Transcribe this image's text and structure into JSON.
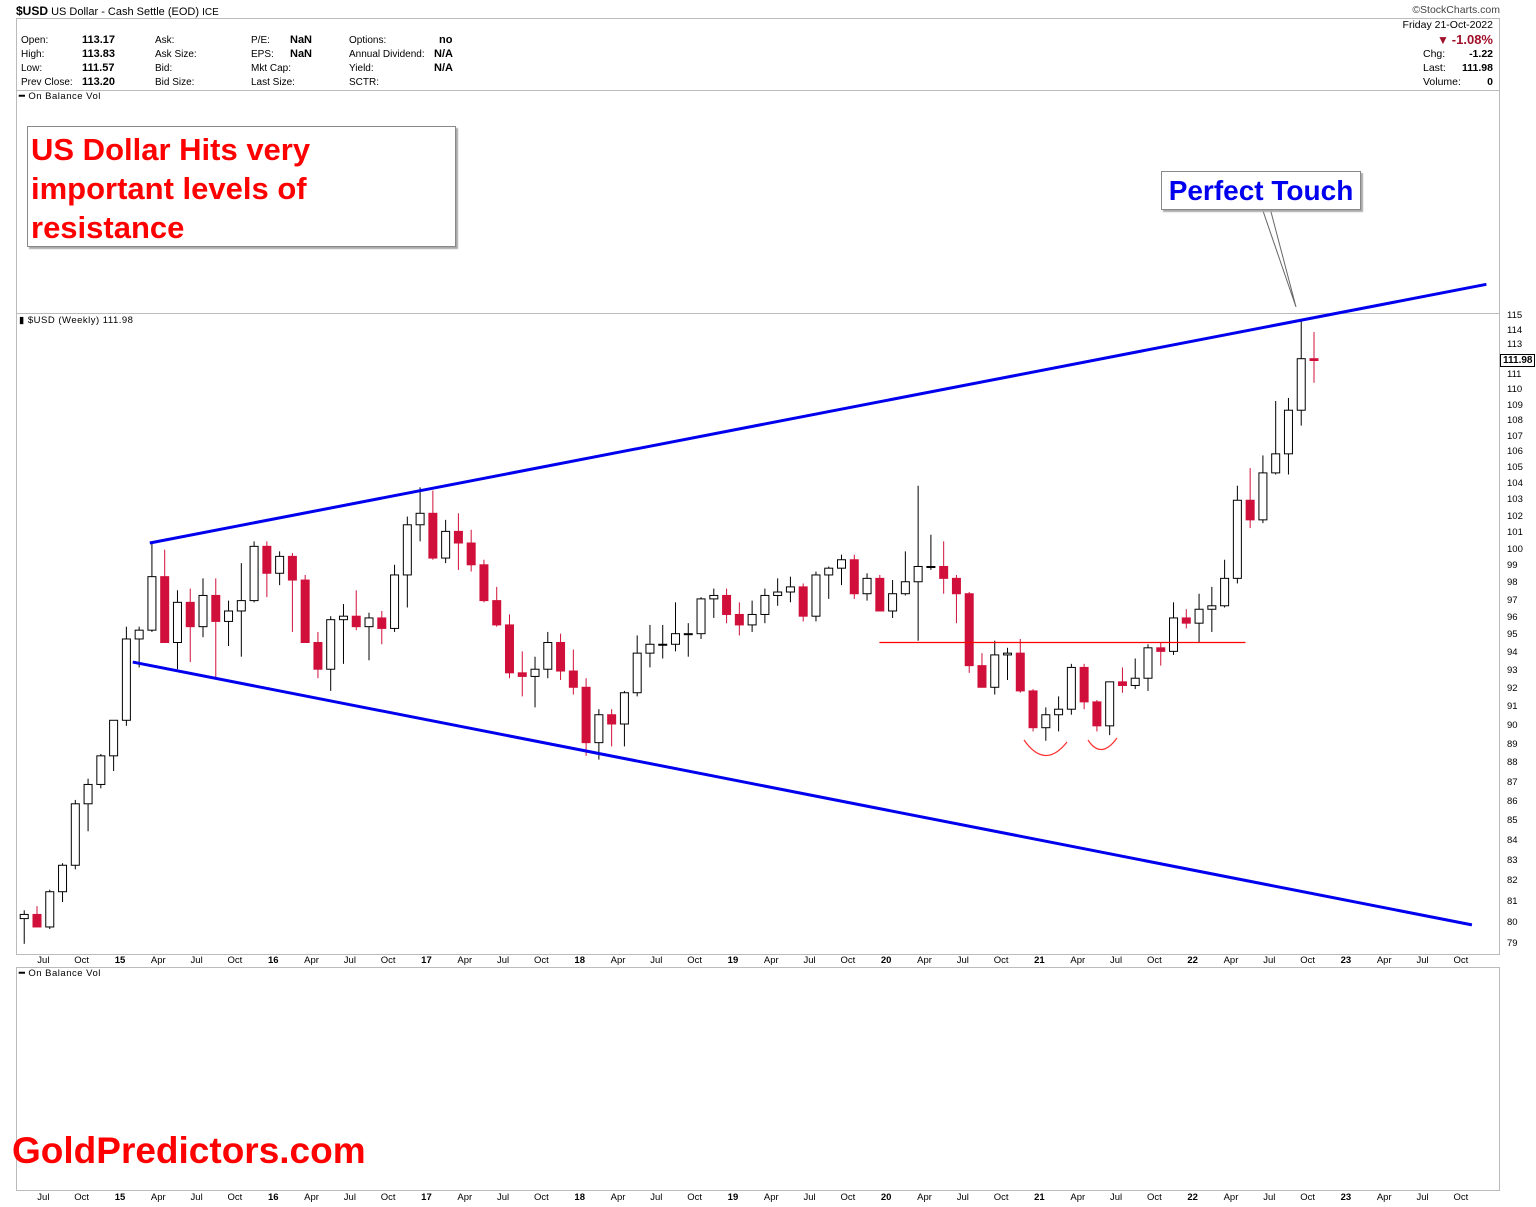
{
  "header": {
    "symbol": "$USD",
    "name": "US Dollar - Cash Settle (EOD)",
    "exchange": "ICE",
    "watermark": "©StockCharts.com",
    "date": "Friday  21-Oct-2022",
    "change_pct": "-1.08%",
    "quote": [
      {
        "label": "Open:",
        "value": "113.17"
      },
      {
        "label": "High:",
        "value": "113.83"
      },
      {
        "label": "Low:",
        "value": "111.57"
      },
      {
        "label": "Prev Close:",
        "value": "113.20"
      }
    ],
    "col2": [
      "Ask:",
      "Ask Size:",
      "Bid:",
      "Bid Size:"
    ],
    "col3": [
      {
        "label": "P/E:",
        "value": "NaN"
      },
      {
        "label": "EPS:",
        "value": "NaN"
      },
      {
        "label": "Mkt Cap:",
        "value": ""
      },
      {
        "label": "Last Size:",
        "value": ""
      }
    ],
    "col4": [
      {
        "label": "Options:",
        "value": "no"
      },
      {
        "label": "Annual Dividend:",
        "value": "N/A"
      },
      {
        "label": "Yield:",
        "value": "N/A"
      },
      {
        "label": "SCTR:",
        "value": ""
      }
    ],
    "right": [
      {
        "label": "Chg:",
        "value": "-1.22"
      },
      {
        "label": "Last:",
        "value": "111.98"
      },
      {
        "label": "Volume:",
        "value": "0"
      }
    ]
  },
  "colors": {
    "up": "#000000",
    "down": "#d0103a",
    "trendline": "#0000ee",
    "level": "#ff0000"
  },
  "annotations": {
    "headline": [
      "US Dollar Hits very",
      "important levels of",
      "resistance"
    ],
    "callout": "Perfect Touch",
    "brand": "GoldPredictors.com"
  },
  "panels": {
    "top_indicator": "On Balance Vol",
    "price_legend": "$USD (Weekly) 111.98",
    "bottom_indicator": "On Balance Vol",
    "last_price_tag": "111.98"
  },
  "chart_data": {
    "type": "candlestick",
    "title": "$USD (Weekly) 111.98",
    "y_scale": "log",
    "ylim": [
      79,
      115
    ],
    "y_ticks": [
      79,
      80,
      81,
      82,
      83,
      84,
      85,
      86,
      87,
      88,
      89,
      90,
      91,
      92,
      93,
      94,
      95,
      96,
      97,
      98,
      99,
      100,
      101,
      102,
      103,
      104,
      105,
      106,
      107,
      108,
      109,
      110,
      111,
      113,
      114,
      115
    ],
    "x_ticks": [
      {
        "date": "2014-07",
        "label": "Jul"
      },
      {
        "date": "2014-10",
        "label": "Oct"
      },
      {
        "date": "2015-01",
        "label": "15",
        "year": true
      },
      {
        "date": "2015-04",
        "label": "Apr"
      },
      {
        "date": "2015-07",
        "label": "Jul"
      },
      {
        "date": "2015-10",
        "label": "Oct"
      },
      {
        "date": "2016-01",
        "label": "16",
        "year": true
      },
      {
        "date": "2016-04",
        "label": "Apr"
      },
      {
        "date": "2016-07",
        "label": "Jul"
      },
      {
        "date": "2016-10",
        "label": "Oct"
      },
      {
        "date": "2017-01",
        "label": "17",
        "year": true
      },
      {
        "date": "2017-04",
        "label": "Apr"
      },
      {
        "date": "2017-07",
        "label": "Jul"
      },
      {
        "date": "2017-10",
        "label": "Oct"
      },
      {
        "date": "2018-01",
        "label": "18",
        "year": true
      },
      {
        "date": "2018-04",
        "label": "Apr"
      },
      {
        "date": "2018-07",
        "label": "Jul"
      },
      {
        "date": "2018-10",
        "label": "Oct"
      },
      {
        "date": "2019-01",
        "label": "19",
        "year": true
      },
      {
        "date": "2019-04",
        "label": "Apr"
      },
      {
        "date": "2019-07",
        "label": "Jul"
      },
      {
        "date": "2019-10",
        "label": "Oct"
      },
      {
        "date": "2020-01",
        "label": "20",
        "year": true
      },
      {
        "date": "2020-04",
        "label": "Apr"
      },
      {
        "date": "2020-07",
        "label": "Jul"
      },
      {
        "date": "2020-10",
        "label": "Oct"
      },
      {
        "date": "2021-01",
        "label": "21",
        "year": true
      },
      {
        "date": "2021-04",
        "label": "Apr"
      },
      {
        "date": "2021-07",
        "label": "Jul"
      },
      {
        "date": "2021-10",
        "label": "Oct"
      },
      {
        "date": "2022-01",
        "label": "22",
        "year": true
      },
      {
        "date": "2022-04",
        "label": "Apr"
      },
      {
        "date": "2022-07",
        "label": "Jul"
      },
      {
        "date": "2022-10",
        "label": "Oct"
      },
      {
        "date": "2023-01",
        "label": "23",
        "year": true
      },
      {
        "date": "2023-04",
        "label": "Apr"
      },
      {
        "date": "2023-07",
        "label": "Jul"
      },
      {
        "date": "2023-10",
        "label": "Oct"
      }
    ],
    "columns": [
      "date",
      "open",
      "high",
      "low",
      "close"
    ],
    "ohlc": [
      [
        "2014-05",
        80.2,
        80.6,
        79.0,
        80.4
      ],
      [
        "2014-06",
        80.4,
        80.8,
        79.8,
        79.8
      ],
      [
        "2014-07",
        79.8,
        81.6,
        79.7,
        81.5
      ],
      [
        "2014-08",
        81.5,
        82.9,
        81.0,
        82.8
      ],
      [
        "2014-09",
        82.8,
        86.1,
        82.6,
        85.9
      ],
      [
        "2014-10",
        85.9,
        87.2,
        84.5,
        86.9
      ],
      [
        "2014-11",
        86.9,
        88.5,
        86.7,
        88.4
      ],
      [
        "2014-12",
        88.4,
        90.3,
        87.6,
        90.3
      ],
      [
        "2015-01",
        90.3,
        95.5,
        90.0,
        94.8
      ],
      [
        "2015-02",
        94.8,
        95.5,
        93.2,
        95.3
      ],
      [
        "2015-03",
        95.3,
        100.4,
        95.2,
        98.4
      ],
      [
        "2015-04",
        98.4,
        100.0,
        94.6,
        94.6
      ],
      [
        "2015-05",
        94.6,
        97.6,
        93.1,
        96.9
      ],
      [
        "2015-06",
        96.9,
        97.7,
        93.5,
        95.5
      ],
      [
        "2015-07",
        95.5,
        98.3,
        94.9,
        97.3
      ],
      [
        "2015-08",
        97.3,
        98.3,
        92.6,
        95.8
      ],
      [
        "2015-09",
        95.8,
        97.0,
        94.4,
        96.4
      ],
      [
        "2015-10",
        96.4,
        99.2,
        93.8,
        97.0
      ],
      [
        "2015-11",
        97.0,
        100.5,
        96.9,
        100.2
      ],
      [
        "2015-12",
        100.2,
        100.5,
        97.2,
        98.6
      ],
      [
        "2016-01",
        98.6,
        99.9,
        97.9,
        99.6
      ],
      [
        "2016-02",
        99.6,
        99.8,
        95.2,
        98.2
      ],
      [
        "2016-03",
        98.2,
        98.5,
        94.6,
        94.6
      ],
      [
        "2016-04",
        94.6,
        95.2,
        92.6,
        93.1
      ],
      [
        "2016-05",
        93.1,
        96.1,
        91.9,
        95.9
      ],
      [
        "2016-06",
        95.9,
        96.8,
        93.4,
        96.1
      ],
      [
        "2016-07",
        96.1,
        97.6,
        95.3,
        95.5
      ],
      [
        "2016-08",
        95.5,
        96.3,
        93.6,
        96.0
      ],
      [
        "2016-09",
        96.0,
        96.4,
        94.5,
        95.4
      ],
      [
        "2016-10",
        95.4,
        99.1,
        95.2,
        98.5
      ],
      [
        "2016-11",
        98.5,
        102.0,
        96.6,
        101.5
      ],
      [
        "2016-12",
        101.5,
        103.8,
        100.5,
        102.2
      ],
      [
        "2017-01",
        102.2,
        103.6,
        99.4,
        99.5
      ],
      [
        "2017-02",
        99.5,
        101.8,
        99.2,
        101.1
      ],
      [
        "2017-03",
        101.1,
        102.2,
        98.8,
        100.4
      ],
      [
        "2017-04",
        100.4,
        101.2,
        98.7,
        99.1
      ],
      [
        "2017-05",
        99.1,
        99.4,
        96.9,
        97.0
      ],
      [
        "2017-06",
        97.0,
        97.8,
        95.5,
        95.6
      ],
      [
        "2017-07",
        95.6,
        96.2,
        92.6,
        92.9
      ],
      [
        "2017-08",
        92.9,
        94.1,
        91.6,
        92.7
      ],
      [
        "2017-09",
        92.7,
        93.8,
        91.0,
        93.1
      ],
      [
        "2017-10",
        93.1,
        95.2,
        92.6,
        94.6
      ],
      [
        "2017-11",
        94.6,
        95.1,
        92.5,
        93.0
      ],
      [
        "2017-12",
        93.0,
        94.2,
        91.7,
        92.1
      ],
      [
        "2018-01",
        92.1,
        92.6,
        88.4,
        89.1
      ],
      [
        "2018-02",
        89.1,
        90.9,
        88.2,
        90.6
      ],
      [
        "2018-03",
        90.6,
        90.9,
        88.9,
        90.1
      ],
      [
        "2018-04",
        90.1,
        91.9,
        88.9,
        91.8
      ],
      [
        "2018-05",
        91.8,
        95.0,
        91.6,
        94.0
      ],
      [
        "2018-06",
        94.0,
        95.6,
        93.2,
        94.5
      ],
      [
        "2018-07",
        94.5,
        95.6,
        93.7,
        94.5
      ],
      [
        "2018-08",
        94.5,
        96.9,
        94.1,
        95.1
      ],
      [
        "2018-09",
        95.1,
        95.7,
        93.8,
        95.1
      ],
      [
        "2018-10",
        95.1,
        97.2,
        94.8,
        97.1
      ],
      [
        "2018-11",
        97.1,
        97.7,
        96.0,
        97.3
      ],
      [
        "2018-12",
        97.3,
        97.7,
        95.7,
        96.2
      ],
      [
        "2019-01",
        96.2,
        96.9,
        95.0,
        95.6
      ],
      [
        "2019-02",
        95.6,
        97.0,
        95.2,
        96.2
      ],
      [
        "2019-03",
        96.2,
        97.7,
        95.7,
        97.3
      ],
      [
        "2019-04",
        97.3,
        98.3,
        96.7,
        97.5
      ],
      [
        "2019-05",
        97.5,
        98.4,
        96.9,
        97.8
      ],
      [
        "2019-06",
        97.8,
        98.0,
        95.8,
        96.1
      ],
      [
        "2019-07",
        96.1,
        98.7,
        95.8,
        98.5
      ],
      [
        "2019-08",
        98.5,
        99.0,
        97.1,
        98.9
      ],
      [
        "2019-09",
        98.9,
        99.7,
        97.9,
        99.4
      ],
      [
        "2019-10",
        99.4,
        99.7,
        97.1,
        97.4
      ],
      [
        "2019-11",
        97.4,
        98.6,
        97.0,
        98.3
      ],
      [
        "2019-12",
        98.3,
        98.5,
        96.4,
        96.4
      ],
      [
        "2020-01",
        96.4,
        98.2,
        96.0,
        97.4
      ],
      [
        "2020-02",
        97.4,
        99.9,
        97.3,
        98.1
      ],
      [
        "2020-03",
        98.1,
        103.9,
        94.7,
        99.0
      ],
      [
        "2020-04",
        99.0,
        100.9,
        98.8,
        99.0
      ],
      [
        "2020-05",
        99.0,
        100.5,
        97.4,
        98.3
      ],
      [
        "2020-06",
        98.3,
        98.5,
        95.7,
        97.4
      ],
      [
        "2020-07",
        97.4,
        97.5,
        92.9,
        93.3
      ],
      [
        "2020-08",
        93.3,
        94.0,
        92.2,
        92.1
      ],
      [
        "2020-09",
        92.1,
        94.7,
        91.7,
        93.9
      ],
      [
        "2020-10",
        93.9,
        94.3,
        92.5,
        94.0
      ],
      [
        "2020-11",
        94.0,
        94.8,
        91.8,
        91.9
      ],
      [
        "2020-12",
        91.9,
        92.0,
        89.7,
        89.9
      ],
      [
        "2021-01",
        89.9,
        91.0,
        89.2,
        90.6
      ],
      [
        "2021-02",
        90.6,
        91.6,
        89.7,
        90.9
      ],
      [
        "2021-03",
        90.9,
        93.4,
        90.6,
        93.2
      ],
      [
        "2021-04",
        93.2,
        93.4,
        90.9,
        91.3
      ],
      [
        "2021-05",
        91.3,
        91.4,
        89.7,
        90.0
      ],
      [
        "2021-06",
        90.0,
        92.4,
        89.5,
        92.4
      ],
      [
        "2021-07",
        92.4,
        93.2,
        91.8,
        92.2
      ],
      [
        "2021-08",
        92.2,
        93.7,
        92.0,
        92.6
      ],
      [
        "2021-09",
        92.6,
        94.5,
        91.9,
        94.3
      ],
      [
        "2021-10",
        94.3,
        94.6,
        93.3,
        94.1
      ],
      [
        "2021-11",
        94.1,
        96.9,
        93.9,
        96.0
      ],
      [
        "2021-12",
        96.0,
        96.5,
        95.4,
        95.7
      ],
      [
        "2022-01",
        95.7,
        97.4,
        94.6,
        96.5
      ],
      [
        "2022-02",
        96.5,
        97.8,
        95.2,
        96.7
      ],
      [
        "2022-03",
        96.7,
        99.4,
        96.6,
        98.3
      ],
      [
        "2022-04",
        98.3,
        103.9,
        98.0,
        103.0
      ],
      [
        "2022-05",
        103.0,
        105.0,
        101.3,
        101.8
      ],
      [
        "2022-06",
        101.8,
        105.8,
        101.6,
        104.7
      ],
      [
        "2022-07",
        104.7,
        109.3,
        104.6,
        105.9
      ],
      [
        "2022-08",
        105.9,
        109.5,
        104.6,
        108.7
      ],
      [
        "2022-09",
        108.7,
        114.8,
        107.7,
        112.1
      ],
      [
        "2022-10",
        112.1,
        113.9,
        110.5,
        111.98
      ]
    ],
    "trendlines": [
      {
        "kind": "upper resistance",
        "color": "#0000ee",
        "from": [
          "2015-03-11",
          100.4
        ],
        "to": [
          "2023-12-01",
          117.2
        ]
      },
      {
        "kind": "lower support",
        "color": "#0000ee",
        "from": [
          "2015-02-01",
          93.5
        ],
        "to": [
          "2023-10-27",
          79.9
        ]
      },
      {
        "kind": "horizontal level",
        "color": "#ff0000",
        "from": [
          "2019-12-15",
          94.6
        ],
        "to": [
          "2022-05-05",
          94.6
        ]
      }
    ]
  }
}
